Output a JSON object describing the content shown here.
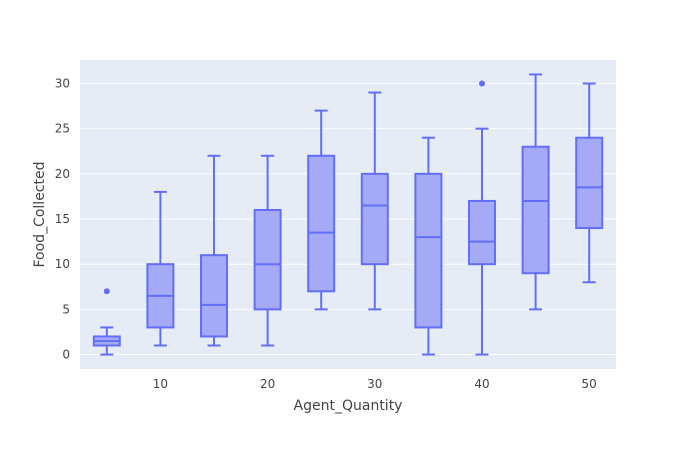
{
  "chart_data": {
    "type": "box",
    "title": "",
    "xlabel": "Agent_Quantity",
    "ylabel": "Food_Collected",
    "xlim": [
      2.5,
      52.5
    ],
    "ylim": [
      -1.6,
      32.6
    ],
    "xticks": [
      10,
      20,
      30,
      40,
      50
    ],
    "yticks": [
      0,
      5,
      10,
      15,
      20,
      25,
      30
    ],
    "grid": true,
    "legend": "none",
    "colors": {
      "plot_bg": "#e5ecf6",
      "grid": "#ffffff",
      "box_line": "#636efa",
      "box_fill": "#a5aaf7"
    },
    "boxes": [
      {
        "x": 5,
        "min": 0,
        "q1": 1,
        "median": 1.5,
        "q3": 2,
        "max": 3,
        "outliers": [
          7
        ]
      },
      {
        "x": 10,
        "min": 1,
        "q1": 3,
        "median": 6.5,
        "q3": 10,
        "max": 18,
        "outliers": []
      },
      {
        "x": 15,
        "min": 1,
        "q1": 2,
        "median": 5.5,
        "q3": 11,
        "max": 22,
        "outliers": []
      },
      {
        "x": 20,
        "min": 1,
        "q1": 5,
        "median": 10,
        "q3": 16,
        "max": 22,
        "outliers": []
      },
      {
        "x": 25,
        "min": 5,
        "q1": 7,
        "median": 13.5,
        "q3": 22,
        "max": 27,
        "outliers": []
      },
      {
        "x": 30,
        "min": 5,
        "q1": 10,
        "median": 16.5,
        "q3": 20,
        "max": 29,
        "outliers": []
      },
      {
        "x": 35,
        "min": 0,
        "q1": 3,
        "median": 13,
        "q3": 20,
        "max": 24,
        "outliers": []
      },
      {
        "x": 40,
        "min": 0,
        "q1": 10,
        "median": 12.5,
        "q3": 17,
        "max": 25,
        "outliers": [
          30
        ]
      },
      {
        "x": 45,
        "min": 5,
        "q1": 9,
        "median": 17,
        "q3": 23,
        "max": 31,
        "outliers": []
      },
      {
        "x": 50,
        "min": 8,
        "q1": 14,
        "median": 18.5,
        "q3": 24,
        "max": 30,
        "outliers": []
      }
    ]
  }
}
